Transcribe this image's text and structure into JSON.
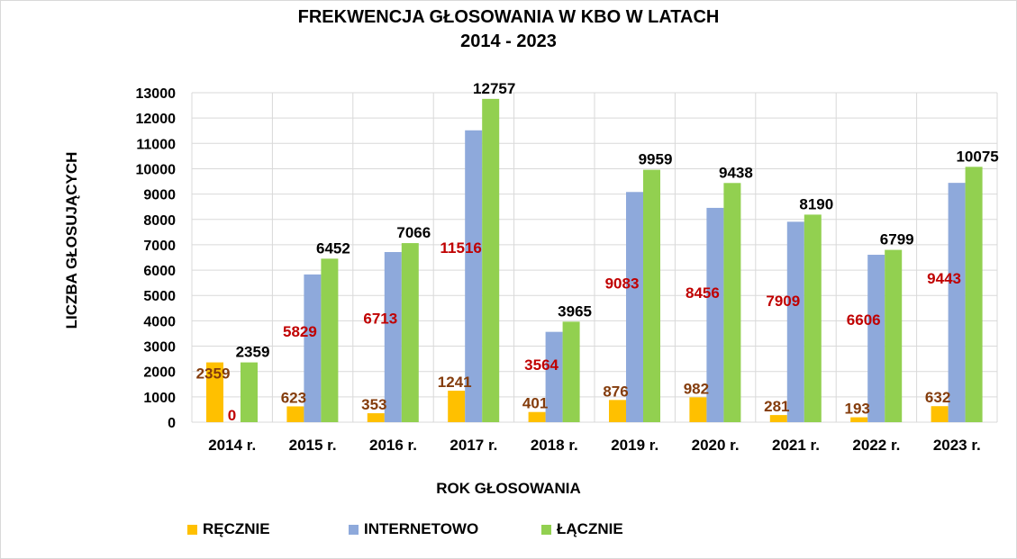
{
  "chart_data": {
    "type": "bar",
    "title_line1": "FREKWENCJA GŁOSOWANIA W KBO W LATACH",
    "title_line2": "2014 - 2023",
    "xlabel": "ROK GŁOSOWANIA",
    "ylabel": "LICZBA GŁOSUJĄCYCH",
    "ylim": [
      0,
      13000
    ],
    "ytick_step": 1000,
    "grid": true,
    "legend_position": "bottom-left",
    "categories": [
      "2014 r.",
      "2015 r.",
      "2016 r.",
      "2017 r.",
      "2018 r.",
      "2019 r.",
      "2020 r.",
      "2021 r.",
      "2022 r.",
      "2023 r."
    ],
    "series": [
      {
        "name": "RĘCZNIE",
        "color": "#FFC000",
        "label_color": "#843C0C",
        "values": [
          2359,
          623,
          353,
          1241,
          401,
          876,
          982,
          281,
          193,
          632
        ]
      },
      {
        "name": "INTERNETOWO",
        "color": "#8EA9DB",
        "label_color": "#C00000",
        "values": [
          0,
          5829,
          6713,
          11516,
          3564,
          9083,
          8456,
          7909,
          6606,
          9443
        ]
      },
      {
        "name": "ŁĄCZNIE",
        "color": "#92D050",
        "label_color": "#000000",
        "values": [
          2359,
          6452,
          7066,
          12757,
          3965,
          9959,
          9438,
          8190,
          6799,
          10075
        ]
      }
    ]
  }
}
